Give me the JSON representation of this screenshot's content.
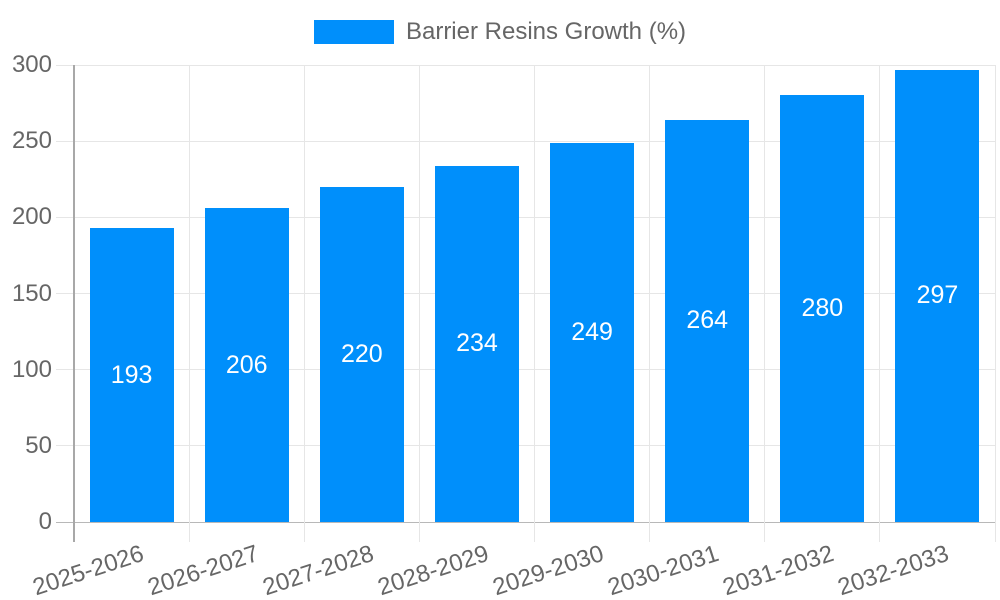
{
  "chart_data": {
    "type": "bar",
    "title": "Barrier Resins Growth (%)",
    "legend_position": "top",
    "categories": [
      "2025-2026",
      "2026-2027",
      "2027-2028",
      "2028-2029",
      "2029-2030",
      "2030-2031",
      "2031-2032",
      "2032-2033"
    ],
    "series": [
      {
        "name": "Barrier Resins Growth (%)",
        "values": [
          193,
          206,
          220,
          234,
          249,
          264,
          280,
          297
        ]
      }
    ],
    "data_labels": [
      "193",
      "206",
      "220",
      "234",
      "249",
      "264",
      "280",
      "297"
    ],
    "xlabel": "",
    "ylabel": "",
    "ylim": [
      0,
      300
    ],
    "yticks": [
      0,
      50,
      100,
      150,
      200,
      250,
      300
    ],
    "grid": true,
    "colors": {
      "bar": "#008FFB",
      "bar_label_text": "#ffffff",
      "axis_text": "#666666",
      "gridline": "#e6e6e6",
      "baseline": "#b8b8b8",
      "y_axis_line": "#a8a8a8",
      "background": "#ffffff"
    }
  }
}
